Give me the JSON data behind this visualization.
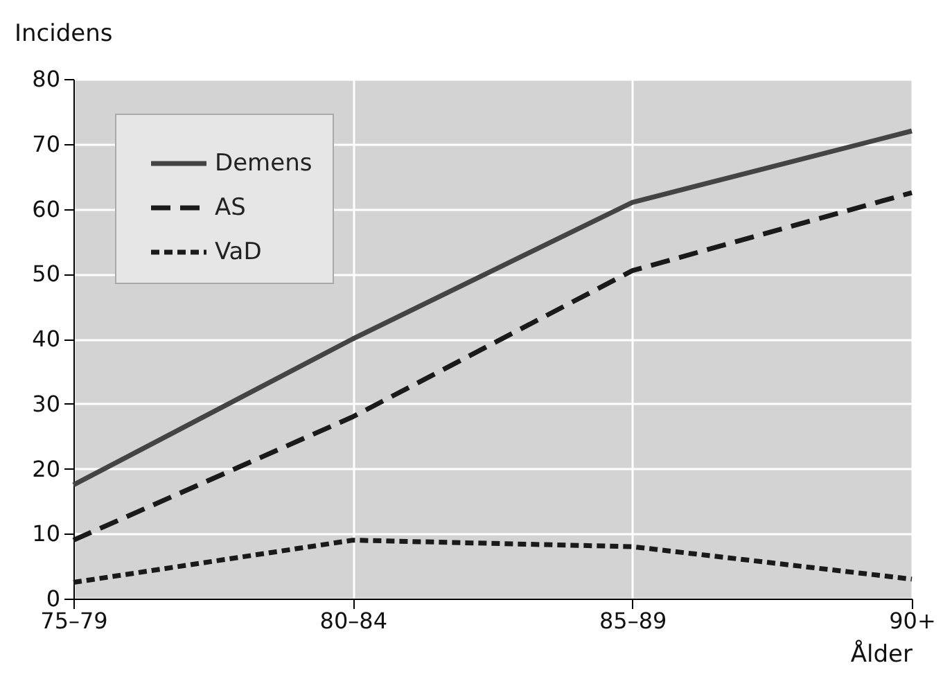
{
  "chart_data": {
    "type": "line",
    "xlabel": "Ålder",
    "ylabel": "Incidens",
    "categories": [
      "75–79",
      "80–84",
      "85–89",
      "90+"
    ],
    "series": [
      {
        "name": "Demens",
        "color": "#444444",
        "line_style": "solid",
        "values": [
          17.5,
          40,
          61,
          72
        ]
      },
      {
        "name": "AS",
        "color": "#1a1a1a",
        "line_style": "dashed",
        "values": [
          9,
          28,
          50.5,
          62.5
        ]
      },
      {
        "name": "VaD",
        "color": "#1a1a1a",
        "line_style": "dotted",
        "values": [
          2.5,
          9,
          8,
          3
        ]
      }
    ],
    "ylim": [
      0,
      80
    ],
    "yticks": [
      0,
      10,
      20,
      30,
      40,
      50,
      60,
      70,
      80
    ],
    "grid": true,
    "legend": "top left",
    "marker": "none"
  }
}
